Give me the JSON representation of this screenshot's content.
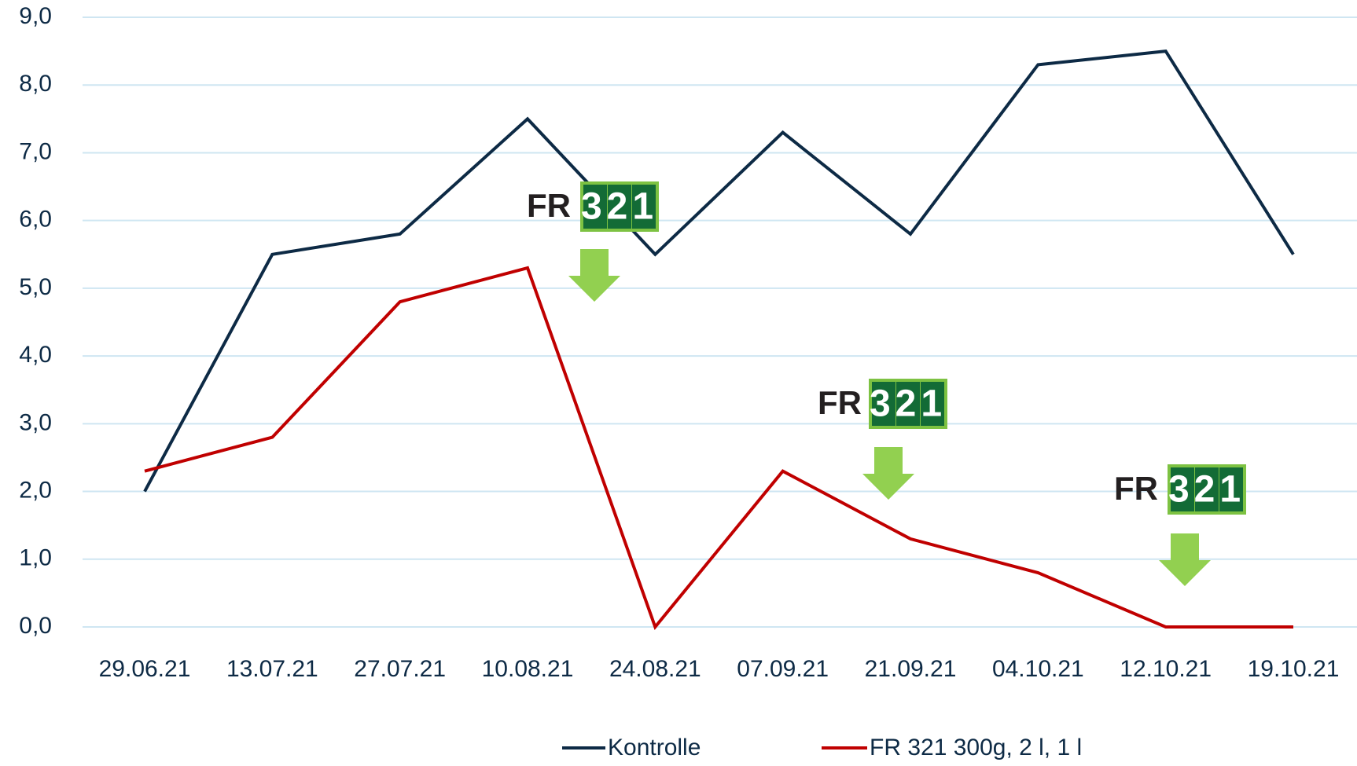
{
  "chart_data": {
    "type": "line",
    "categories": [
      "29.06.21",
      "13.07.21",
      "27.07.21",
      "10.08.21",
      "24.08.21",
      "07.09.21",
      "21.09.21",
      "04.10.21",
      "12.10.21",
      "19.10.21"
    ],
    "series": [
      {
        "name": "Kontrolle",
        "color": "#0d2a45",
        "values": [
          2.0,
          5.5,
          5.8,
          7.5,
          5.5,
          7.3,
          5.8,
          8.3,
          8.5,
          5.5
        ]
      },
      {
        "name": "FR 321  300g, 2 l, 1 l",
        "color": "#c00000",
        "values": [
          2.3,
          2.8,
          4.8,
          5.3,
          0.0,
          2.3,
          1.3,
          0.8,
          0.0,
          0.0
        ]
      }
    ],
    "ylim": [
      0,
      9
    ],
    "yticks": [
      {
        "value": 0,
        "label": "0,0"
      },
      {
        "value": 1,
        "label": "1,0"
      },
      {
        "value": 2,
        "label": "2,0"
      },
      {
        "value": 3,
        "label": "3,0"
      },
      {
        "value": 4,
        "label": "4,0"
      },
      {
        "value": 5,
        "label": "5,0"
      },
      {
        "value": 6,
        "label": "6,0"
      },
      {
        "value": 7,
        "label": "7,0"
      },
      {
        "value": 8,
        "label": "8,0"
      },
      {
        "value": 9,
        "label": "9,0"
      }
    ],
    "grid": true,
    "legend": "bottom",
    "annotations": [
      {
        "brand": "FR",
        "number": "321"
      },
      {
        "brand": "FR",
        "number": "321"
      },
      {
        "brand": "FR",
        "number": "321"
      }
    ]
  }
}
